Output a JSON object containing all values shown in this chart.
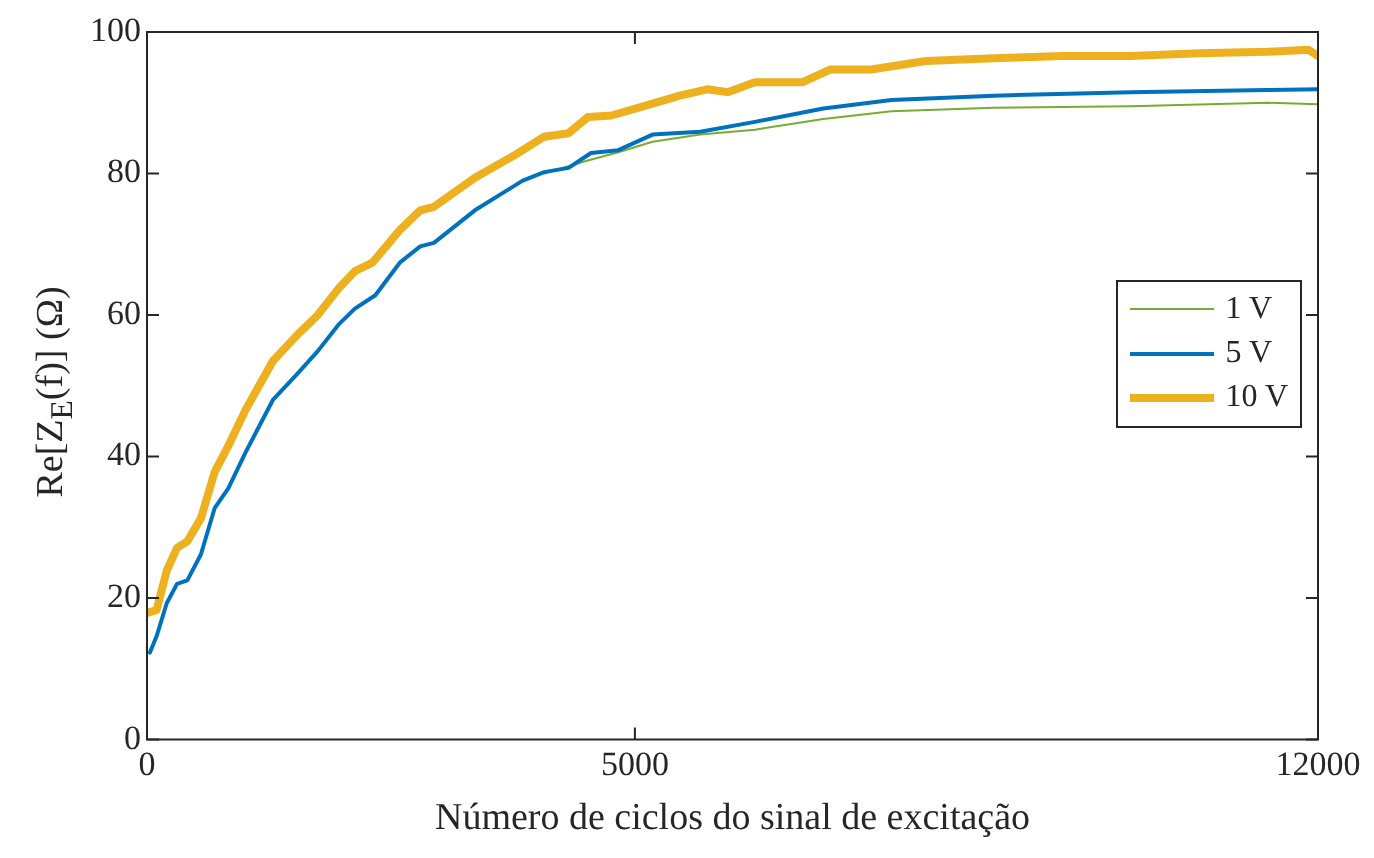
{
  "chart_data": {
    "type": "line",
    "xlabel": "Número de ciclos do sinal de excitação",
    "ylabel": "Re[Z$_{E}$(f)] (Ω)",
    "xlim": [
      0,
      12000
    ],
    "xticks": [
      0,
      5000,
      12000
    ],
    "ylim": [
      0,
      100
    ],
    "yticks": [
      0,
      20,
      40,
      60,
      80,
      100
    ],
    "grid": false,
    "legend": "right",
    "marker": "none",
    "line_style": "solid",
    "series": [
      {
        "name": "1 V",
        "color": "#77ac30",
        "x": [
          4070,
          4480,
          4830,
          5180,
          5670,
          6230,
          6930,
          7630,
          8680,
          10080,
          11480,
          12000
        ],
        "values": [
          80,
          81.7,
          83,
          84.5,
          85.5,
          86.2,
          87.7,
          88.8,
          89.3,
          89.5,
          90,
          89.8
        ]
      },
      {
        "name": "5 V",
        "color": "#0072bd",
        "x": [
          30,
          98,
          203,
          308,
          413,
          553,
          693,
          833,
          1010,
          1290,
          1540,
          1750,
          1960,
          2130,
          2340,
          2590,
          2800,
          2940,
          3360,
          3850,
          4070,
          4320,
          4550,
          4830,
          5180,
          5670,
          6230,
          6930,
          7630,
          8680,
          10080,
          11480,
          12000
        ],
        "values": [
          12.3,
          14.6,
          19.3,
          22,
          22.5,
          26.2,
          32.7,
          35.5,
          40.6,
          48,
          51.7,
          54.9,
          58.6,
          60.9,
          62.8,
          67.4,
          69.7,
          70.2,
          74.8,
          79,
          80.2,
          80.8,
          82.9,
          83.3,
          85.5,
          85.9,
          87.3,
          89.2,
          90.4,
          91,
          91.5,
          91.8,
          91.9
        ]
      },
      {
        "name": "10 V",
        "color": "#edb120",
        "x": [
          0,
          98,
          203,
          308,
          413,
          553,
          693,
          833,
          1010,
          1290,
          1540,
          1750,
          1960,
          2130,
          2310,
          2590,
          2800,
          2940,
          3360,
          3780,
          4070,
          4320,
          4520,
          4760,
          5110,
          5460,
          5740,
          5950,
          6230,
          6720,
          7000,
          7420,
          7980,
          8680,
          9380,
          10080,
          10780,
          11480,
          11900,
          12000
        ],
        "values": [
          17.9,
          18.3,
          23.9,
          27.1,
          28,
          31.3,
          37.8,
          41.5,
          46.6,
          53.5,
          57.2,
          60,
          63.7,
          66.2,
          67.4,
          72,
          74.8,
          75.3,
          79.4,
          82.7,
          85.2,
          85.7,
          88,
          88.2,
          89.6,
          91,
          91.9,
          91.5,
          92.9,
          92.9,
          94.7,
          94.7,
          95.9,
          96.3,
          96.6,
          96.6,
          97,
          97.2,
          97.5,
          96.6
        ]
      }
    ]
  }
}
